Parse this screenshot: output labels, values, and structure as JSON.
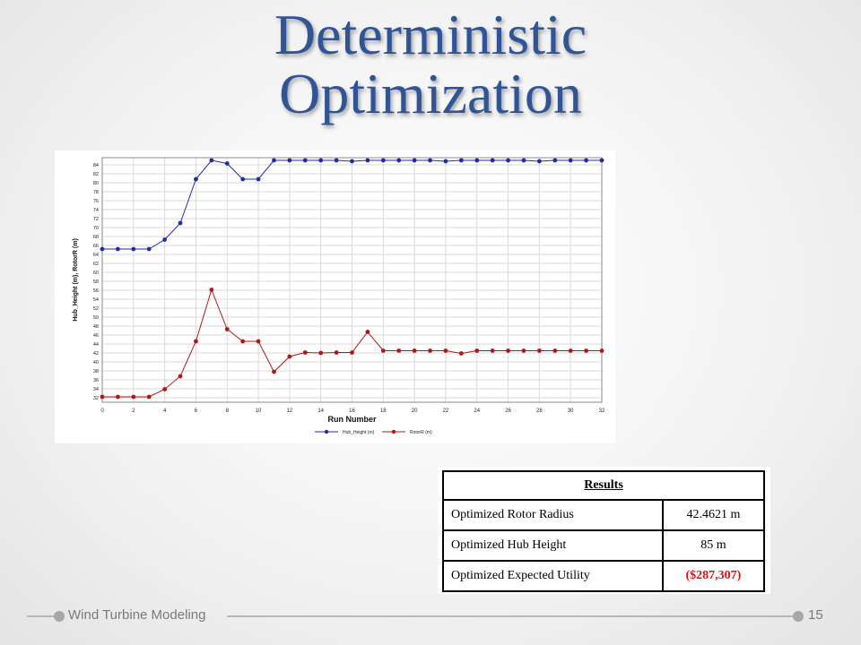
{
  "slide": {
    "title_line1": "Deterministic",
    "title_line2": "Optimization",
    "footer_text": "Wind Turbine Modeling",
    "page_number": "15"
  },
  "results": {
    "heading": "Results",
    "rows": [
      {
        "label": "Optimized Rotor Radius",
        "value": "42.4621 m"
      },
      {
        "label": "Optimized Hub Height",
        "value": "85 m"
      },
      {
        "label": "Optimized Expected Utility",
        "value": "($287,307)"
      }
    ],
    "negative_color": "#e01010"
  },
  "chart_data": {
    "type": "line",
    "title": "",
    "xlabel": "Run Number",
    "ylabel": "Hub_Height (m), RotorR (m)",
    "xlim": [
      0,
      32
    ],
    "ylim": [
      31,
      85.6
    ],
    "x_ticks": [
      0,
      2,
      4,
      6,
      8,
      10,
      12,
      14,
      16,
      18,
      20,
      22,
      24,
      26,
      28,
      30,
      32
    ],
    "y_ticks": [
      32,
      34,
      36,
      38,
      40,
      42,
      44,
      46,
      48,
      50,
      52,
      54,
      56,
      58,
      60,
      62,
      64,
      66,
      68,
      70,
      72,
      74,
      76,
      78,
      80,
      82,
      84
    ],
    "grid": true,
    "legend_position": "bottom-center",
    "x": [
      0,
      1,
      2,
      3,
      4,
      5,
      6,
      7,
      8,
      9,
      10,
      11,
      12,
      13,
      14,
      15,
      16,
      17,
      18,
      19,
      20,
      21,
      22,
      23,
      24,
      25,
      26,
      27,
      28,
      29,
      30,
      31,
      32
    ],
    "series": [
      {
        "name": "Hub_Height (m)",
        "color": "#1f2fa0",
        "values": [
          65.2,
          65.2,
          65.2,
          65.2,
          67.3,
          71.0,
          80.8,
          85.0,
          84.3,
          80.8,
          80.8,
          85.0,
          85.0,
          85.0,
          85.0,
          85.0,
          84.8,
          85.0,
          85.0,
          85.0,
          85.0,
          85.0,
          84.8,
          85.0,
          85.0,
          85.0,
          85.0,
          85.0,
          84.8,
          85.0,
          85.0,
          85.0,
          85.0
        ]
      },
      {
        "name": "RotorR (m)",
        "color": "#b01818",
        "values": [
          32.2,
          32.2,
          32.2,
          32.2,
          33.9,
          36.8,
          44.6,
          56.1,
          47.3,
          44.6,
          44.6,
          37.8,
          41.2,
          42.1,
          42.0,
          42.1,
          42.1,
          46.7,
          42.5,
          42.5,
          42.5,
          42.5,
          42.5,
          41.9,
          42.5,
          42.5,
          42.5,
          42.5,
          42.5,
          42.5,
          42.5,
          42.5,
          42.5
        ]
      }
    ]
  }
}
